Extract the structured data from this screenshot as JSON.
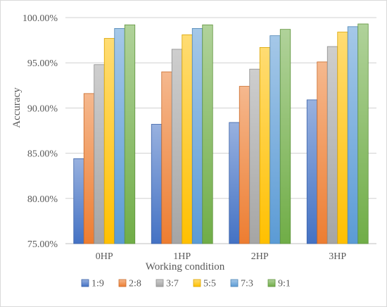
{
  "chart_data": {
    "type": "bar",
    "title": "",
    "xlabel": "Working condition",
    "ylabel": "Accuracy",
    "categories": [
      "0HP",
      "1HP",
      "2HP",
      "3HP"
    ],
    "ylim": [
      75,
      100
    ],
    "yticks": [
      75,
      80,
      85,
      90,
      95,
      100
    ],
    "ytick_labels": [
      "75.00%",
      "80.00%",
      "85.00%",
      "90.00%",
      "95.00%",
      "100.00%"
    ],
    "grid": "horizontal",
    "legend_position": "bottom",
    "series": [
      {
        "name": "1:9",
        "color": "#4472c4",
        "values": [
          84.4,
          88.2,
          88.4,
          90.9
        ]
      },
      {
        "name": "2:8",
        "color": "#ed7d31",
        "values": [
          91.6,
          94.0,
          92.4,
          95.1
        ]
      },
      {
        "name": "3:7",
        "color": "#a5a5a5",
        "values": [
          94.8,
          96.5,
          94.3,
          96.8
        ]
      },
      {
        "name": "5:5",
        "color": "#ffc000",
        "values": [
          97.7,
          98.1,
          96.7,
          98.4
        ]
      },
      {
        "name": "7:3",
        "color": "#5b9bd5",
        "values": [
          98.8,
          98.8,
          98.0,
          99.0
        ]
      },
      {
        "name": "9:1",
        "color": "#70ad47",
        "values": [
          99.2,
          99.2,
          98.7,
          99.3
        ]
      }
    ]
  }
}
